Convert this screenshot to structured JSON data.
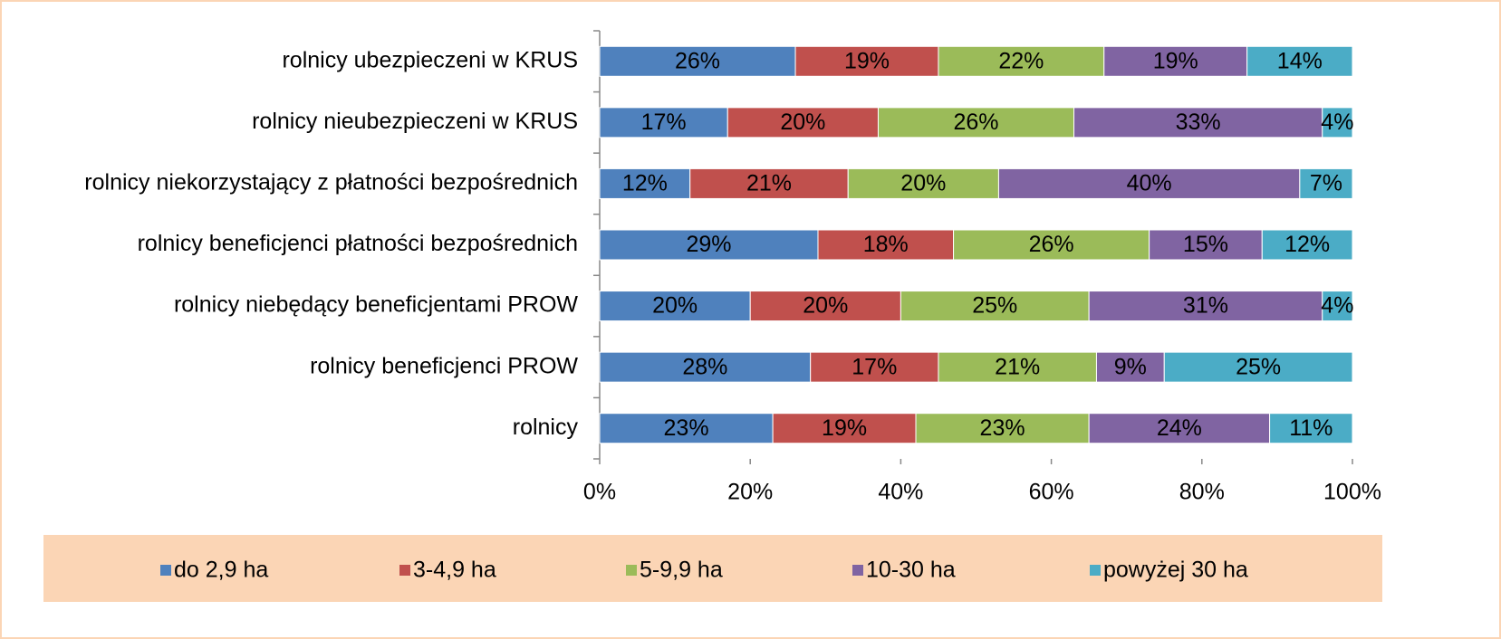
{
  "chart_data": {
    "type": "stacked-barh",
    "categories": [
      "rolnicy ubezpieczeni w KRUS",
      "rolnicy nieubezpieczeni w KRUS",
      "rolnicy niekorzystający z płatności bezpośrednich",
      "rolnicy beneficjenci płatności bezpośrednich",
      "rolnicy niebędący beneficjentami PROW",
      "rolnicy beneficjenci PROW",
      "rolnicy"
    ],
    "series": [
      {
        "name": "do 2,9 ha",
        "color": "#4f81bd",
        "values": [
          26,
          17,
          12,
          29,
          20,
          28,
          23
        ],
        "value_labels": [
          "26%",
          "17%",
          "12%",
          "29%",
          "20%",
          "28%",
          "23%"
        ]
      },
      {
        "name": "3-4,9 ha",
        "color": "#c0504d",
        "values": [
          19,
          20,
          21,
          18,
          20,
          17,
          19
        ],
        "value_labels": [
          "19%",
          "20%",
          "21%",
          "18%",
          "20%",
          "17%",
          "19%"
        ]
      },
      {
        "name": "5-9,9 ha",
        "color": "#9bbb59",
        "values": [
          22,
          26,
          20,
          26,
          25,
          21,
          23
        ],
        "value_labels": [
          "22%",
          "26%",
          "20%",
          "26%",
          "25%",
          "21%",
          "23%"
        ]
      },
      {
        "name": "10-30 ha",
        "color": "#8064a2",
        "values": [
          19,
          33,
          40,
          15,
          31,
          9,
          24
        ],
        "value_labels": [
          "19%",
          "33%",
          "40%",
          "15%",
          "31%",
          "9%",
          "24%"
        ]
      },
      {
        "name": "powyżej 30 ha",
        "color": "#4bacc6",
        "values": [
          14,
          4,
          7,
          12,
          4,
          25,
          11
        ],
        "value_labels": [
          "14%",
          "4%",
          "7%",
          "12%",
          "4%",
          "25%",
          "11%"
        ]
      }
    ],
    "xlim": [
      0,
      100
    ],
    "xticks": [
      {
        "value": 0,
        "label": "0%"
      },
      {
        "value": 20,
        "label": "20%"
      },
      {
        "value": 40,
        "label": "40%"
      },
      {
        "value": 60,
        "label": "60%"
      },
      {
        "value": 80,
        "label": "80%"
      },
      {
        "value": 100,
        "label": "100%"
      }
    ],
    "legend": "bottom"
  }
}
